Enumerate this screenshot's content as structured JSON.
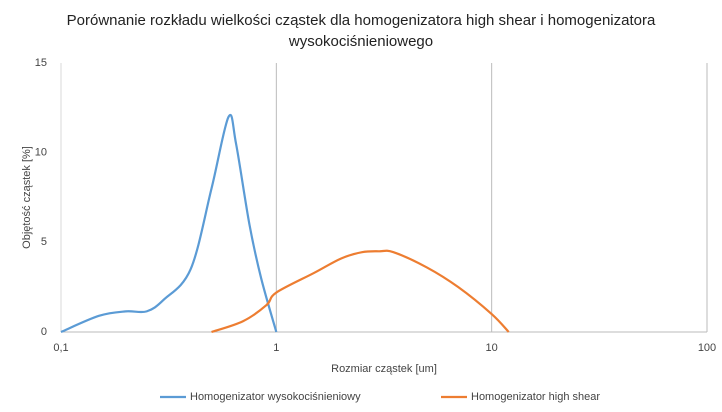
{
  "chart_data": {
    "type": "line",
    "title": "Porównanie rozkładu wielkości cząstek dla homogenizatora high shear i homogenizatora wysokociśnieniowego",
    "x_label": "Rozmiar cząstek [um]",
    "y_label": "Objętość cząstek [%]",
    "xscale": "log",
    "xlim": [
      0.1,
      100
    ],
    "xticks": [
      {
        "value": 0.1,
        "label": "0,1"
      },
      1,
      10,
      100
    ],
    "ylim": [
      0,
      15
    ],
    "yticks": [
      0,
      5,
      10,
      15
    ],
    "grid": "x",
    "legend": "bottom",
    "series": [
      {
        "name": "Homogenizator wysokociśnieniowy",
        "color": "#5b9bd5",
        "x": [
          0.1,
          0.15,
          0.2,
          0.25,
          0.3,
          0.4,
          0.5,
          0.6,
          0.65,
          0.75,
          0.85,
          1
        ],
        "values": [
          0,
          0.9,
          1.15,
          1.15,
          1.8,
          3.5,
          8,
          12,
          10.5,
          6,
          3,
          0
        ]
      },
      {
        "name": "Homogenizator high shear",
        "color": "#ed7d31",
        "x": [
          0.5,
          0.7,
          0.9,
          1,
          1.5,
          2,
          2.5,
          3,
          3.5,
          5,
          7,
          10,
          12
        ],
        "values": [
          0,
          0.6,
          1.5,
          2.2,
          3.3,
          4.1,
          4.45,
          4.5,
          4.45,
          3.6,
          2.5,
          1.0,
          0
        ]
      }
    ]
  }
}
